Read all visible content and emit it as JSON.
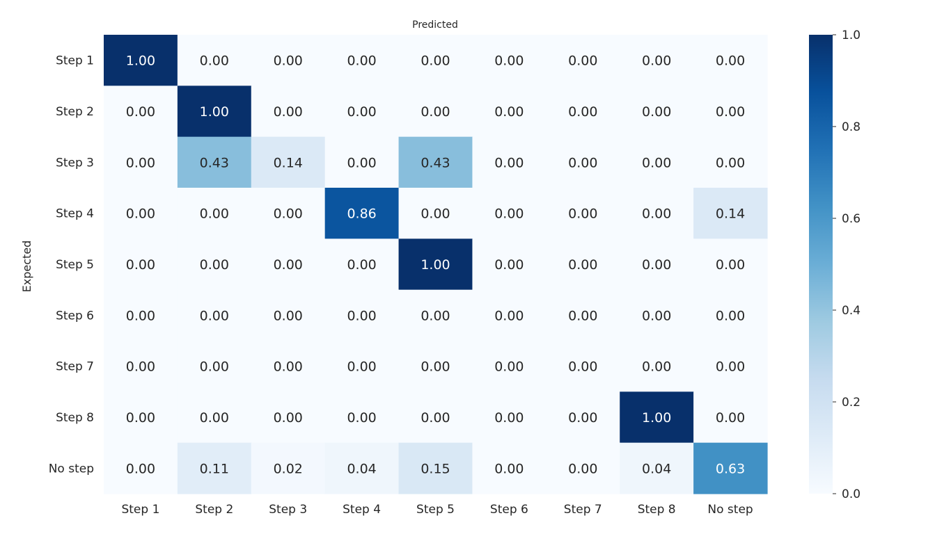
{
  "chart_data": {
    "type": "heatmap",
    "title": "Predicted",
    "xlabel": "",
    "ylabel": "Expected",
    "x_categories": [
      "Step 1",
      "Step 2",
      "Step 3",
      "Step 4",
      "Step 5",
      "Step 6",
      "Step 7",
      "Step 8",
      "No step"
    ],
    "y_categories": [
      "Step 1",
      "Step 2",
      "Step 3",
      "Step 4",
      "Step 5",
      "Step 6",
      "Step 7",
      "Step 8",
      "No step"
    ],
    "values": [
      [
        1.0,
        0.0,
        0.0,
        0.0,
        0.0,
        0.0,
        0.0,
        0.0,
        0.0
      ],
      [
        0.0,
        1.0,
        0.0,
        0.0,
        0.0,
        0.0,
        0.0,
        0.0,
        0.0
      ],
      [
        0.0,
        0.43,
        0.14,
        0.0,
        0.43,
        0.0,
        0.0,
        0.0,
        0.0
      ],
      [
        0.0,
        0.0,
        0.0,
        0.86,
        0.0,
        0.0,
        0.0,
        0.0,
        0.14
      ],
      [
        0.0,
        0.0,
        0.0,
        0.0,
        1.0,
        0.0,
        0.0,
        0.0,
        0.0
      ],
      [
        0.0,
        0.0,
        0.0,
        0.0,
        0.0,
        0.0,
        0.0,
        0.0,
        0.0
      ],
      [
        0.0,
        0.0,
        0.0,
        0.0,
        0.0,
        0.0,
        0.0,
        0.0,
        0.0
      ],
      [
        0.0,
        0.0,
        0.0,
        0.0,
        0.0,
        0.0,
        0.0,
        1.0,
        0.0
      ],
      [
        0.0,
        0.11,
        0.02,
        0.04,
        0.15,
        0.0,
        0.0,
        0.04,
        0.63
      ]
    ],
    "value_format": "0.00",
    "colormap": "Blues",
    "colorbar": {
      "range": [
        0.0,
        1.0
      ],
      "ticks": [
        0.0,
        0.2,
        0.4,
        0.6,
        0.8,
        1.0
      ],
      "tick_labels": [
        "0.0",
        "0.2",
        "0.4",
        "0.6",
        "0.8",
        "1.0"
      ]
    },
    "grid": false,
    "colors": {
      "text_dark": "#262626",
      "text_light": "#ffffff",
      "blues": [
        "#f7fbff",
        "#deebf7",
        "#c6dbef",
        "#9ecae1",
        "#6baed6",
        "#4292c6",
        "#2171b5",
        "#08519c",
        "#08306b"
      ]
    }
  }
}
